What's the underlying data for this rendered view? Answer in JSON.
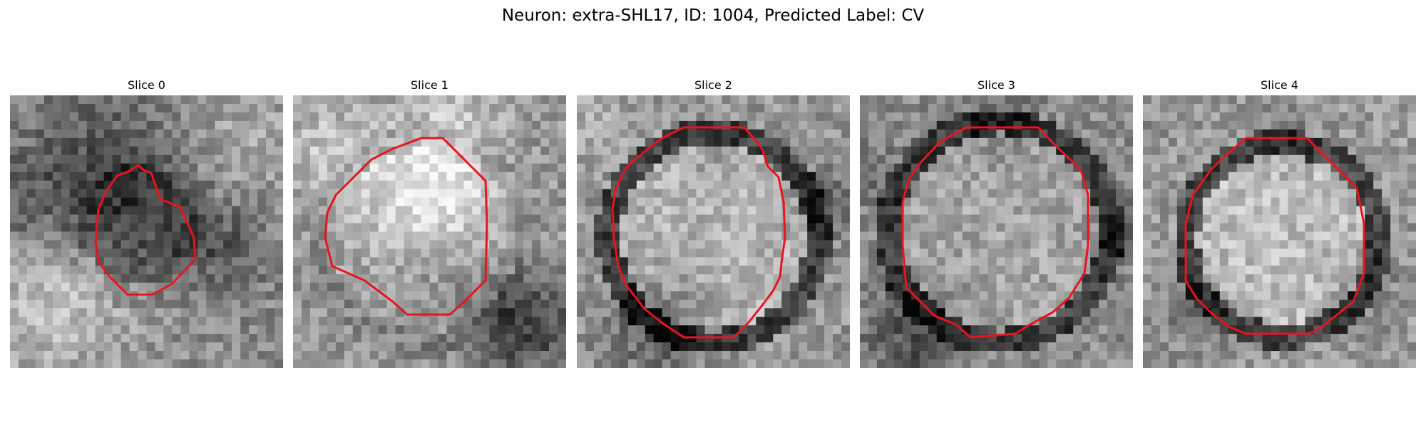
{
  "figure": {
    "title": "Neuron: extra-SHL17, ID: 1004, Predicted Label: CV"
  },
  "panels": [
    {
      "title": "Slice 0",
      "contour_color": "#e8141e"
    },
    {
      "title": "Slice 1",
      "contour_color": "#e8141e"
    },
    {
      "title": "Slice 2",
      "contour_color": "#e8141e"
    },
    {
      "title": "Slice 3",
      "contour_color": "#e8141e"
    },
    {
      "title": "Slice 4",
      "contour_color": "#e8141e"
    }
  ]
}
